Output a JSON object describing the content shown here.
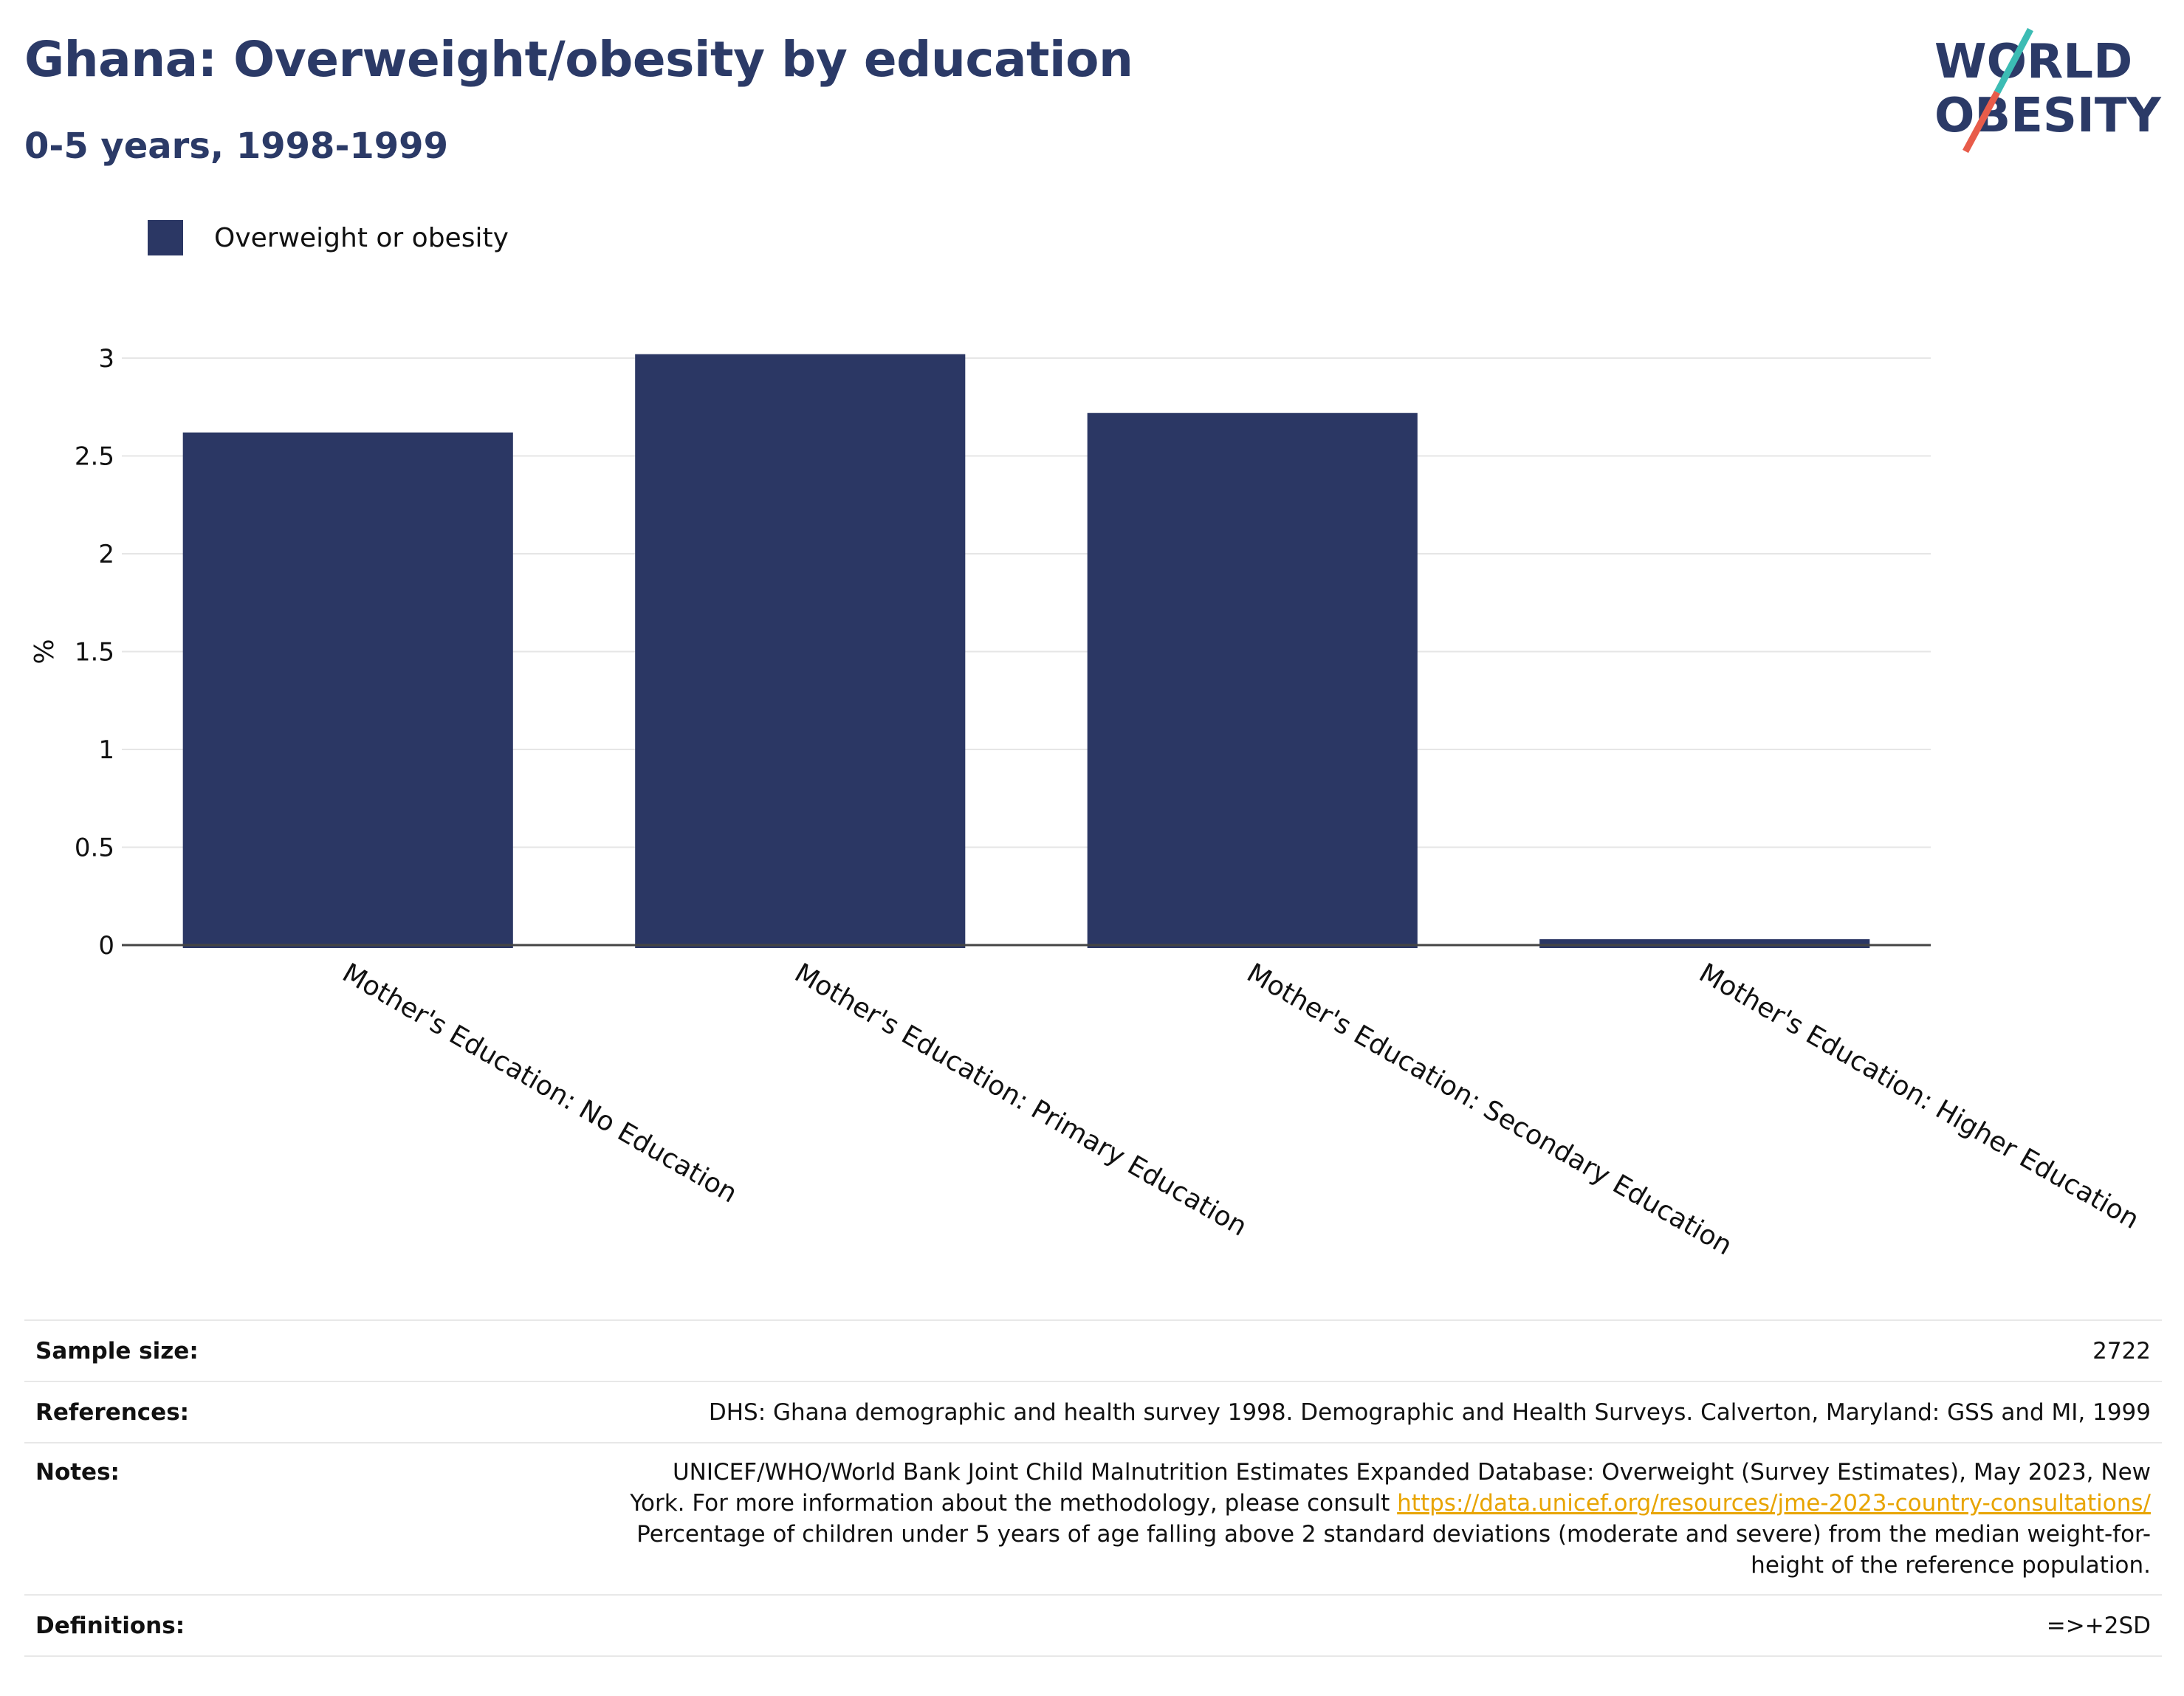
{
  "title": "Ghana: Overweight/obesity by education",
  "subtitle": "0-5 years, 1998-1999",
  "logo": {
    "line1": "WORLD",
    "line2": "OBESITY"
  },
  "colors": {
    "bar": "#2b3764",
    "title": "#2b3a67",
    "grid": "#e6e6e6",
    "axis": "#444444",
    "link": "#e8a400",
    "logo_teal": "#3cbcb4",
    "logo_red": "#e85c4a"
  },
  "legend": {
    "label": "Overweight or obesity"
  },
  "chart_data": {
    "type": "bar",
    "categories": [
      "Mother's Education: No Education",
      "Mother's Education: Primary Education",
      "Mother's Education: Secondary Education",
      "Mother's Education: Higher Education"
    ],
    "series": [
      {
        "name": "Overweight or obesity",
        "values": [
          2.62,
          3.02,
          2.72,
          0.03
        ]
      }
    ],
    "ylabel": "%",
    "ylim": [
      0,
      3
    ],
    "yticks": [
      "0",
      "0.5",
      "1",
      "1.5",
      "2",
      "2.5",
      "3"
    ],
    "grid": true,
    "legend_position": "top-left"
  },
  "footer": {
    "sample_size": {
      "label": "Sample size:",
      "value": "2722"
    },
    "references": {
      "label": "References:",
      "value": "DHS: Ghana demographic and health survey 1998. Demographic and Health Surveys. Calverton, Maryland: GSS and MI, 1999"
    },
    "notes": {
      "label": "Notes:",
      "line1": "UNICEF/WHO/World Bank Joint Child Malnutrition Estimates Expanded Database: Overweight (Survey Estimates), May 2023, New",
      "line2_prefix": "York. For more information about the methodology, please consult ",
      "link": "https://data.unicef.org/resources/jme-2023-country-consultations/",
      "line3": "Percentage of children under 5 years of age falling above 2 standard deviations (moderate and severe) from the median weight-for-",
      "line4": "height of the reference population."
    },
    "definitions": {
      "label": "Definitions:",
      "value": "=>+2SD"
    }
  }
}
